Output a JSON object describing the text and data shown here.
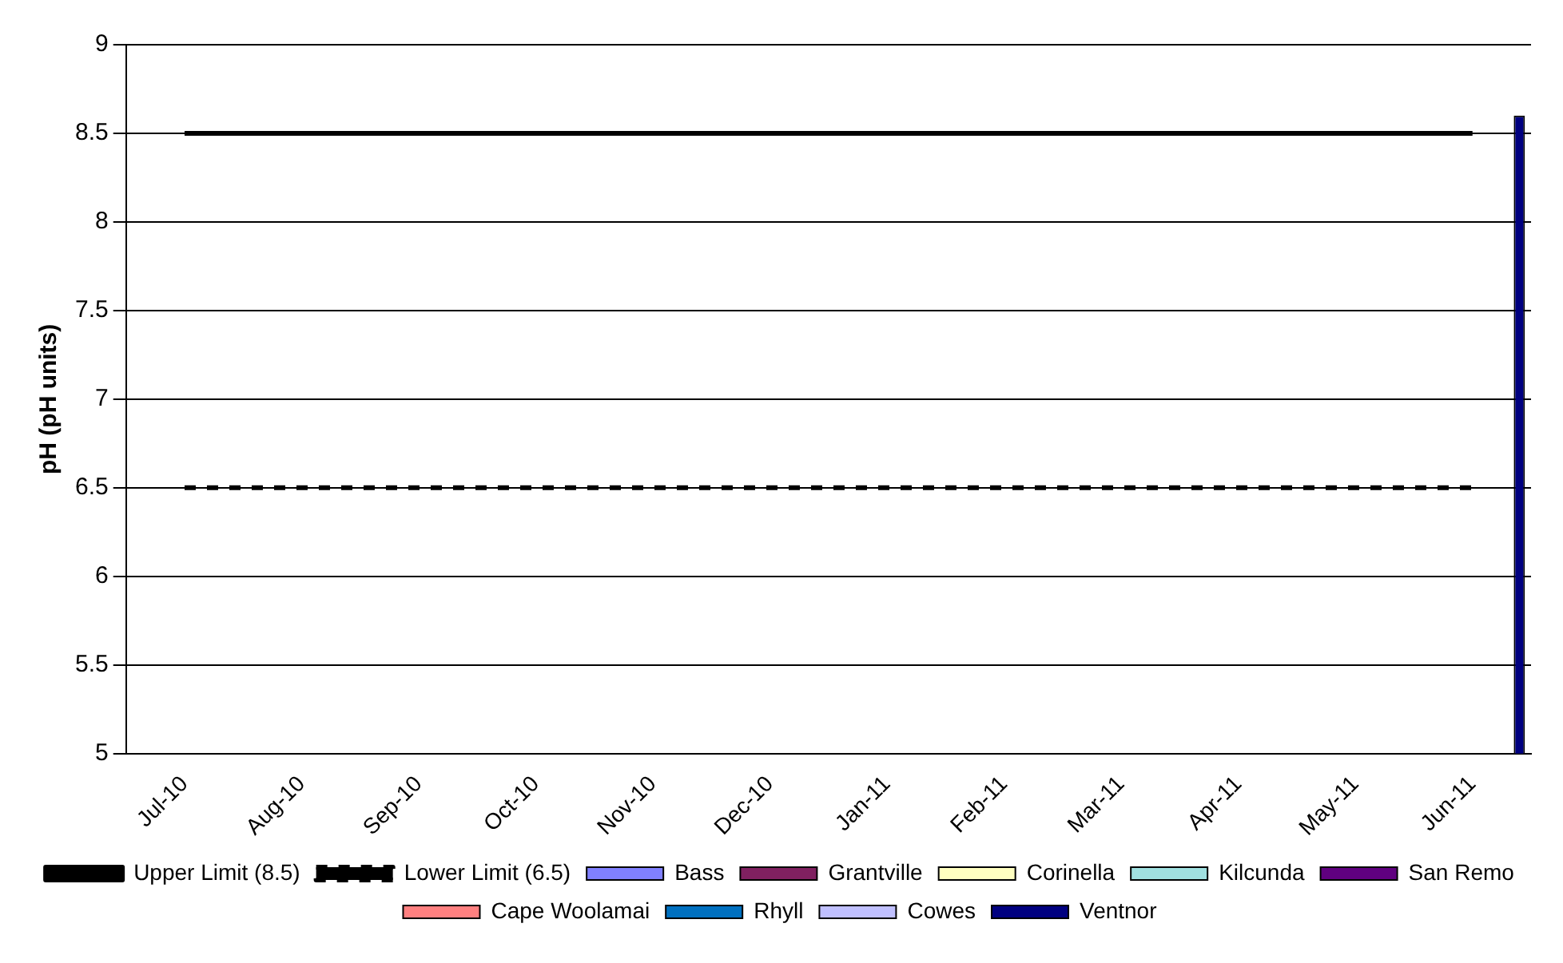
{
  "chart_data": {
    "type": "bar",
    "ylabel": "pH (pH units)",
    "categories": [
      "Jul-10",
      "Aug-10",
      "Sep-10",
      "Oct-10",
      "Nov-10",
      "Dec-10",
      "Jan-11",
      "Feb-11",
      "Mar-11",
      "Apr-11",
      "May-11",
      "Jun-11"
    ],
    "series": [
      {
        "name": "Bass",
        "color": "#8080ff",
        "values": [
          null,
          null,
          null,
          null,
          null,
          null,
          null,
          null,
          null,
          null,
          null,
          null
        ]
      },
      {
        "name": "Grantville",
        "color": "#802060",
        "values": [
          null,
          null,
          null,
          null,
          null,
          null,
          null,
          null,
          null,
          null,
          null,
          null
        ]
      },
      {
        "name": "Corinella",
        "color": "#ffffc0",
        "values": [
          null,
          null,
          null,
          null,
          null,
          null,
          null,
          null,
          null,
          null,
          null,
          null
        ]
      },
      {
        "name": "Kilcunda",
        "color": "#a0e0e0",
        "values": [
          null,
          null,
          null,
          null,
          null,
          null,
          null,
          null,
          null,
          null,
          null,
          null
        ]
      },
      {
        "name": "San Remo",
        "color": "#600080",
        "values": [
          null,
          null,
          null,
          null,
          null,
          null,
          null,
          null,
          null,
          null,
          null,
          null
        ]
      },
      {
        "name": "Cape Woolamai",
        "color": "#ff8080",
        "values": [
          null,
          null,
          null,
          null,
          null,
          null,
          null,
          null,
          null,
          null,
          null,
          null
        ]
      },
      {
        "name": "Rhyll",
        "color": "#0070c0",
        "values": [
          null,
          null,
          null,
          null,
          null,
          null,
          null,
          null,
          null,
          null,
          null,
          null
        ]
      },
      {
        "name": "Cowes",
        "color": "#c0c0ff",
        "values": [
          null,
          null,
          null,
          null,
          null,
          null,
          null,
          null,
          null,
          null,
          null,
          null
        ]
      },
      {
        "name": "Ventnor",
        "color": "#000080",
        "values": [
          null,
          null,
          null,
          null,
          null,
          null,
          null,
          null,
          null,
          null,
          null,
          8.6
        ]
      },
      {
        "name": "Upper Limit (8.5)",
        "type": "line",
        "color": "#000000",
        "line_style": "solid",
        "values": [
          8.5,
          8.5,
          8.5,
          8.5,
          8.5,
          8.5,
          8.5,
          8.5,
          8.5,
          8.5,
          8.5,
          8.5
        ]
      },
      {
        "name": "Lower Limit (6.5)",
        "type": "line",
        "color": "#000000",
        "line_style": "dashed",
        "values": [
          6.5,
          6.5,
          6.5,
          6.5,
          6.5,
          6.5,
          6.5,
          6.5,
          6.5,
          6.5,
          6.5,
          6.5
        ]
      }
    ],
    "ylim": [
      5,
      9
    ],
    "yticks": [
      5,
      5.5,
      6,
      6.5,
      7,
      7.5,
      8,
      8.5,
      9
    ],
    "grid": "y",
    "legend": "bottom",
    "marker": "none"
  }
}
